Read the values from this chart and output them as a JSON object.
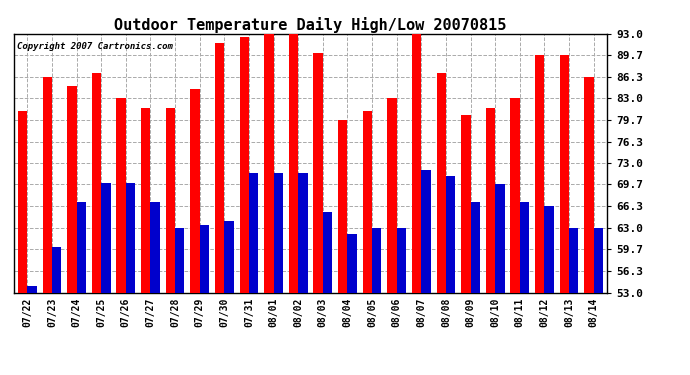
{
  "title": "Outdoor Temperature Daily High/Low 20070815",
  "copyright": "Copyright 2007 Cartronics.com",
  "dates": [
    "07/22",
    "07/23",
    "07/24",
    "07/25",
    "07/26",
    "07/27",
    "07/28",
    "07/29",
    "07/30",
    "07/31",
    "08/01",
    "08/02",
    "08/03",
    "08/04",
    "08/05",
    "08/06",
    "08/07",
    "08/08",
    "08/09",
    "08/10",
    "08/11",
    "08/12",
    "08/13",
    "08/14"
  ],
  "highs": [
    81.0,
    86.3,
    85.0,
    87.0,
    83.0,
    81.5,
    81.5,
    84.5,
    91.5,
    92.5,
    93.0,
    93.0,
    90.0,
    79.7,
    81.0,
    83.0,
    93.0,
    87.0,
    80.5,
    81.5,
    83.0,
    89.7,
    89.7,
    86.3
  ],
  "lows": [
    54.0,
    60.0,
    67.0,
    70.0,
    70.0,
    67.0,
    63.0,
    63.5,
    64.0,
    71.5,
    71.5,
    71.5,
    65.5,
    62.0,
    63.0,
    63.0,
    72.0,
    71.0,
    67.0,
    69.7,
    67.0,
    66.3,
    63.0,
    63.0
  ],
  "high_color": "#ff0000",
  "low_color": "#0000cc",
  "background_color": "#ffffff",
  "grid_color": "#aaaaaa",
  "title_fontsize": 11,
  "ylim_min": 53.0,
  "ylim_max": 93.0,
  "yticks": [
    53.0,
    56.3,
    59.7,
    63.0,
    66.3,
    69.7,
    73.0,
    76.3,
    79.7,
    83.0,
    86.3,
    89.7,
    93.0
  ]
}
